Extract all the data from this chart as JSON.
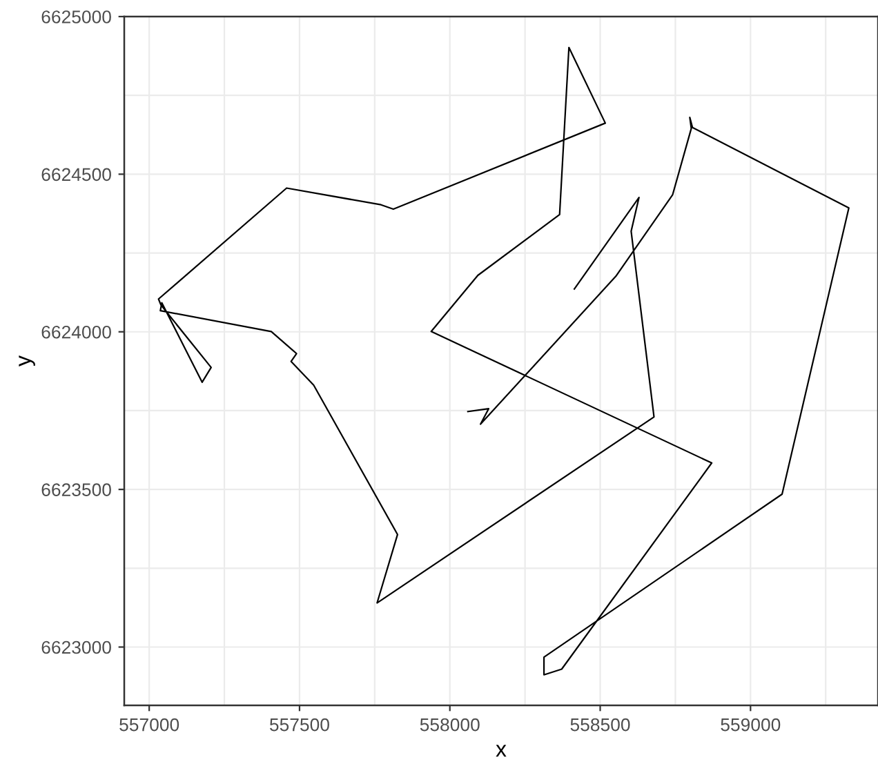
{
  "chart_data": {
    "type": "line",
    "xlabel": "x",
    "ylabel": "y",
    "xlim": [
      556917,
      559424
    ],
    "ylim": [
      6622815,
      6625000
    ],
    "xticks": [
      557000,
      557500,
      558000,
      558500,
      559000
    ],
    "yticks": [
      6623000,
      6623500,
      6624000,
      6624500,
      6625000
    ],
    "grid": true,
    "marker": "none",
    "line_style": "solid",
    "series": [
      {
        "color": "#000000",
        "x": [
          558060,
          558129,
          558102,
          558552,
          558741,
          558803,
          558798,
          558807,
          559327,
          559105,
          558313,
          558313,
          558372,
          558871,
          557938,
          558093,
          558365,
          558396,
          558517,
          557812,
          557771,
          557457,
          557031,
          557039,
          557206,
          557176,
          557042,
          557037,
          557406,
          557490,
          557472,
          557547,
          557826,
          557758,
          558679,
          558603,
          558629,
          558414
        ],
        "values": [
          6623747,
          6623756,
          6623707,
          6624176,
          6624435,
          6624645,
          6624680,
          6624648,
          6624393,
          6623485,
          6622968,
          6622912,
          6622930,
          6623584,
          6624001,
          6624179,
          6624372,
          6624902,
          6624662,
          6624389,
          6624403,
          6624456,
          6624104,
          6624085,
          6623887,
          6623840,
          6624092,
          6624067,
          6624001,
          6623931,
          6623906,
          6623831,
          6623357,
          6623140,
          6623730,
          6624319,
          6624426,
          6624136
        ]
      }
    ]
  }
}
